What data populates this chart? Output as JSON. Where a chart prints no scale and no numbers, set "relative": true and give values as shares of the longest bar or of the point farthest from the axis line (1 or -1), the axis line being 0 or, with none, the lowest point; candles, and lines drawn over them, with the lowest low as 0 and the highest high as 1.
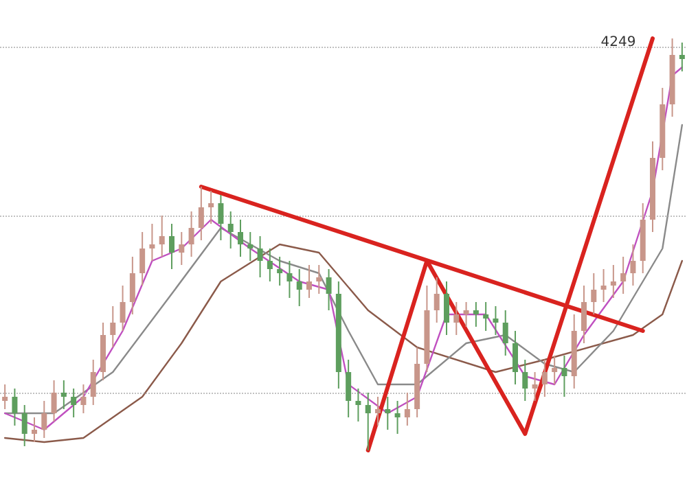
{
  "chart_data": [
    {
      "type": "candlestick",
      "relative": true,
      "categories": [
        null,
        null,
        null,
        null,
        null,
        null,
        null,
        null,
        null,
        null,
        null,
        null,
        null,
        null,
        null,
        null,
        null,
        null,
        null,
        null,
        null,
        null,
        null,
        null,
        null,
        null,
        null,
        null,
        null,
        null,
        null,
        null,
        null,
        null,
        null,
        null,
        null,
        null,
        null,
        null,
        null,
        null,
        null,
        null,
        null,
        null,
        null,
        null,
        null,
        null,
        null,
        null,
        null,
        null,
        null,
        null,
        null,
        null,
        null,
        null,
        null,
        null,
        null,
        null,
        null,
        null,
        null,
        null,
        null,
        null
      ],
      "ohlc": [
        [
          0.12,
          0.16,
          0.1,
          0.13
        ],
        [
          0.13,
          0.15,
          0.06,
          0.09
        ],
        [
          0.09,
          0.11,
          0.01,
          0.04
        ],
        [
          0.04,
          0.08,
          0.02,
          0.05
        ],
        [
          0.05,
          0.12,
          0.03,
          0.09
        ],
        [
          0.09,
          0.17,
          0.07,
          0.14
        ],
        [
          0.14,
          0.17,
          0.1,
          0.13
        ],
        [
          0.13,
          0.15,
          0.08,
          0.11
        ],
        [
          0.11,
          0.16,
          0.09,
          0.13
        ],
        [
          0.13,
          0.22,
          0.11,
          0.19
        ],
        [
          0.19,
          0.31,
          0.17,
          0.28
        ],
        [
          0.28,
          0.35,
          0.25,
          0.31
        ],
        [
          0.31,
          0.4,
          0.29,
          0.36
        ],
        [
          0.36,
          0.47,
          0.33,
          0.43
        ],
        [
          0.43,
          0.53,
          0.4,
          0.49
        ],
        [
          0.49,
          0.55,
          0.46,
          0.5
        ],
        [
          0.5,
          0.57,
          0.47,
          0.52
        ],
        [
          0.52,
          0.55,
          0.44,
          0.48
        ],
        [
          0.48,
          0.53,
          0.45,
          0.5
        ],
        [
          0.5,
          0.58,
          0.47,
          0.54
        ],
        [
          0.54,
          0.64,
          0.51,
          0.59
        ],
        [
          0.59,
          0.63,
          0.55,
          0.6
        ],
        [
          0.6,
          0.62,
          0.51,
          0.55
        ],
        [
          0.55,
          0.58,
          0.49,
          0.53
        ],
        [
          0.53,
          0.56,
          0.47,
          0.5
        ],
        [
          0.5,
          0.53,
          0.46,
          0.49
        ],
        [
          0.49,
          0.52,
          0.42,
          0.46
        ],
        [
          0.46,
          0.49,
          0.41,
          0.44
        ],
        [
          0.44,
          0.47,
          0.4,
          0.43
        ],
        [
          0.43,
          0.46,
          0.37,
          0.41
        ],
        [
          0.41,
          0.44,
          0.35,
          0.39
        ],
        [
          0.39,
          0.45,
          0.37,
          0.41
        ],
        [
          0.41,
          0.45,
          0.38,
          0.42
        ],
        [
          0.42,
          0.44,
          0.34,
          0.38
        ],
        [
          0.38,
          0.41,
          0.15,
          0.19
        ],
        [
          0.19,
          0.22,
          0.08,
          0.12
        ],
        [
          0.12,
          0.15,
          0.07,
          0.11
        ],
        [
          0.11,
          0.14,
          0.0,
          0.09
        ],
        [
          0.09,
          0.13,
          0.06,
          0.1
        ],
        [
          0.1,
          0.13,
          0.05,
          0.09
        ],
        [
          0.09,
          0.12,
          0.04,
          0.08
        ],
        [
          0.08,
          0.14,
          0.06,
          0.1
        ],
        [
          0.1,
          0.25,
          0.08,
          0.21
        ],
        [
          0.21,
          0.4,
          0.19,
          0.34
        ],
        [
          0.34,
          0.42,
          0.31,
          0.38
        ],
        [
          0.38,
          0.41,
          0.28,
          0.31
        ],
        [
          0.31,
          0.36,
          0.28,
          0.33
        ],
        [
          0.33,
          0.36,
          0.3,
          0.34
        ],
        [
          0.34,
          0.36,
          0.3,
          0.33
        ],
        [
          0.33,
          0.36,
          0.29,
          0.32
        ],
        [
          0.32,
          0.35,
          0.28,
          0.31
        ],
        [
          0.31,
          0.34,
          0.23,
          0.26
        ],
        [
          0.26,
          0.29,
          0.16,
          0.19
        ],
        [
          0.19,
          0.22,
          0.12,
          0.15
        ],
        [
          0.15,
          0.19,
          0.12,
          0.16
        ],
        [
          0.16,
          0.22,
          0.13,
          0.19
        ],
        [
          0.19,
          0.23,
          0.16,
          0.2
        ],
        [
          0.2,
          0.23,
          0.13,
          0.18
        ],
        [
          0.18,
          0.33,
          0.15,
          0.29
        ],
        [
          0.29,
          0.4,
          0.26,
          0.36
        ],
        [
          0.36,
          0.43,
          0.33,
          0.39
        ],
        [
          0.39,
          0.44,
          0.36,
          0.4
        ],
        [
          0.4,
          0.45,
          0.37,
          0.41
        ],
        [
          0.41,
          0.47,
          0.38,
          0.43
        ],
        [
          0.43,
          0.5,
          0.4,
          0.46
        ],
        [
          0.46,
          0.6,
          0.43,
          0.56
        ],
        [
          0.56,
          0.75,
          0.53,
          0.71
        ],
        [
          0.71,
          0.88,
          0.68,
          0.84
        ],
        [
          0.84,
          1.0,
          0.81,
          0.96
        ],
        [
          0.96,
          0.99,
          0.92,
          0.95
        ]
      ],
      "colors": [
        "#c8968a",
        "#5e9e5e",
        "#5e9e5e",
        "#c8968a",
        "#c8968a",
        "#c8968a",
        "#5e9e5e",
        "#5e9e5e",
        "#c8968a",
        "#c8968a",
        "#c8968a",
        "#c8968a",
        "#c8968a",
        "#c8968a",
        "#c8968a",
        "#c8968a",
        "#c8968a",
        "#5e9e5e",
        "#c8968a",
        "#c8968a",
        "#c8968a",
        "#c8968a",
        "#5e9e5e",
        "#5e9e5e",
        "#5e9e5e",
        "#5e9e5e",
        "#5e9e5e",
        "#5e9e5e",
        "#5e9e5e",
        "#5e9e5e",
        "#5e9e5e",
        "#c8968a",
        "#c8968a",
        "#5e9e5e",
        "#5e9e5e",
        "#5e9e5e",
        "#5e9e5e",
        "#5e9e5e",
        "#c8968a",
        "#5e9e5e",
        "#5e9e5e",
        "#c8968a",
        "#c8968a",
        "#c8968a",
        "#c8968a",
        "#5e9e5e",
        "#c8968a",
        "#c8968a",
        "#5e9e5e",
        "#5e9e5e",
        "#5e9e5e",
        "#5e9e5e",
        "#5e9e5e",
        "#5e9e5e",
        "#c8968a",
        "#c8968a",
        "#c8968a",
        "#5e9e5e",
        "#c8968a",
        "#c8968a",
        "#c8968a",
        "#c8968a",
        "#c8968a",
        "#c8968a",
        "#c8968a",
        "#c8968a",
        "#c8968a",
        "#c8968a",
        "#c8968a",
        "#5e9e5e"
      ],
      "annotations": [
        "4249"
      ]
    },
    {
      "type": "line",
      "relative": true,
      "marker": "none",
      "categories": [
        null,
        null,
        null,
        null,
        null,
        null,
        null,
        null,
        null,
        null,
        null,
        null,
        null,
        null,
        null,
        null,
        null,
        null,
        null,
        null,
        null,
        null,
        null,
        null,
        null,
        null,
        null,
        null,
        null,
        null,
        null,
        null,
        null,
        null,
        null,
        null,
        null,
        null,
        null,
        null,
        null,
        null,
        null,
        null,
        null,
        null,
        null,
        null,
        null,
        null,
        null,
        null,
        null,
        null,
        null,
        null,
        null,
        null,
        null,
        null,
        null,
        null,
        null,
        null,
        null,
        null,
        null,
        null,
        null,
        null
      ],
      "series": [
        {
          "color": "#8b5a4a",
          "values": [
            0.03,
            null,
            null,
            null,
            0.02,
            null,
            null,
            null,
            0.03,
            null,
            null,
            null,
            null,
            null,
            0.13,
            null,
            null,
            null,
            0.26,
            null,
            null,
            null,
            0.41,
            null,
            null,
            null,
            null,
            null,
            0.5,
            null,
            null,
            null,
            0.48,
            null,
            null,
            null,
            null,
            0.34,
            null,
            null,
            null,
            null,
            0.25,
            null,
            null,
            null,
            null,
            null,
            null,
            null,
            0.19,
            null,
            null,
            null,
            null,
            0.22,
            null,
            null,
            null,
            null,
            null,
            null,
            null,
            null,
            0.28,
            null,
            null,
            0.33,
            null,
            0.46
          ]
        },
        {
          "color": "#8a8a8a",
          "values": [
            0.09,
            null,
            null,
            null,
            null,
            0.09,
            null,
            null,
            null,
            null,
            null,
            0.19,
            null,
            null,
            null,
            null,
            null,
            0.38,
            null,
            null,
            null,
            null,
            0.54,
            null,
            null,
            null,
            null,
            null,
            0.46,
            null,
            null,
            null,
            0.43,
            null,
            null,
            0.29,
            null,
            null,
            0.16,
            null,
            null,
            null,
            0.16,
            null,
            null,
            null,
            null,
            0.26,
            null,
            null,
            null,
            0.28,
            null,
            null,
            null,
            0.21,
            null,
            null,
            0.19,
            null,
            null,
            null,
            0.29,
            null,
            null,
            null,
            null,
            0.49,
            null,
            0.79
          ]
        },
        {
          "color": "#c050c0",
          "values": [
            0.09,
            null,
            null,
            null,
            0.05,
            null,
            null,
            null,
            0.13,
            null,
            null,
            null,
            0.29,
            null,
            null,
            0.46,
            null,
            null,
            0.49,
            null,
            null,
            0.56,
            null,
            null,
            null,
            0.49,
            null,
            null,
            null,
            null,
            0.41,
            null,
            null,
            0.39,
            null,
            0.16,
            null,
            null,
            null,
            0.09,
            null,
            null,
            0.13,
            null,
            null,
            0.33,
            null,
            null,
            null,
            0.33,
            null,
            null,
            null,
            0.18,
            null,
            null,
            0.16,
            null,
            null,
            0.28,
            null,
            null,
            null,
            0.41,
            null,
            null,
            0.63,
            null,
            0.91,
            0.93
          ]
        },
        {
          "color": "#d9231f",
          "values": [
            null,
            null,
            null,
            null,
            null,
            null,
            null,
            null,
            null,
            null,
            null,
            null,
            null,
            null,
            null,
            null,
            null,
            null,
            null,
            null,
            0.64,
            null,
            null,
            null,
            null,
            null,
            null,
            null,
            null,
            null,
            null,
            null,
            null,
            null,
            null,
            null,
            null,
            null,
            null,
            null,
            null,
            null,
            null,
            null,
            null,
            null,
            null,
            null,
            null,
            null,
            null,
            null,
            null,
            null,
            null,
            null,
            null,
            null,
            null,
            null,
            null,
            null,
            null,
            null,
            null,
            0.29,
            null,
            null,
            null,
            null
          ]
        },
        {
          "color": "#d9231f",
          "values": [
            null,
            null,
            null,
            null,
            null,
            null,
            null,
            null,
            null,
            null,
            null,
            null,
            null,
            null,
            null,
            null,
            null,
            null,
            null,
            null,
            null,
            null,
            null,
            null,
            null,
            null,
            null,
            null,
            null,
            null,
            null,
            null,
            null,
            null,
            null,
            null,
            null,
            0.0,
            null,
            null,
            null,
            null,
            null,
            0.46,
            null,
            null,
            null,
            null,
            null,
            null,
            null,
            null,
            null,
            0.04,
            null,
            null,
            null,
            null,
            null,
            null,
            null,
            null,
            null,
            null,
            null,
            null,
            1.0,
            null,
            null,
            null
          ]
        }
      ],
      "ref_lines": [
        {
          "axis": "y",
          "value": 0.98,
          "color": "#c0c0c0",
          "line_style": "dotted"
        },
        {
          "axis": "y",
          "value": 0.57,
          "color": "#c0c0c0",
          "line_style": "dotted"
        },
        {
          "axis": "y",
          "value": 0.14,
          "color": "#c0c0c0",
          "line_style": "dotted"
        }
      ]
    }
  ]
}
